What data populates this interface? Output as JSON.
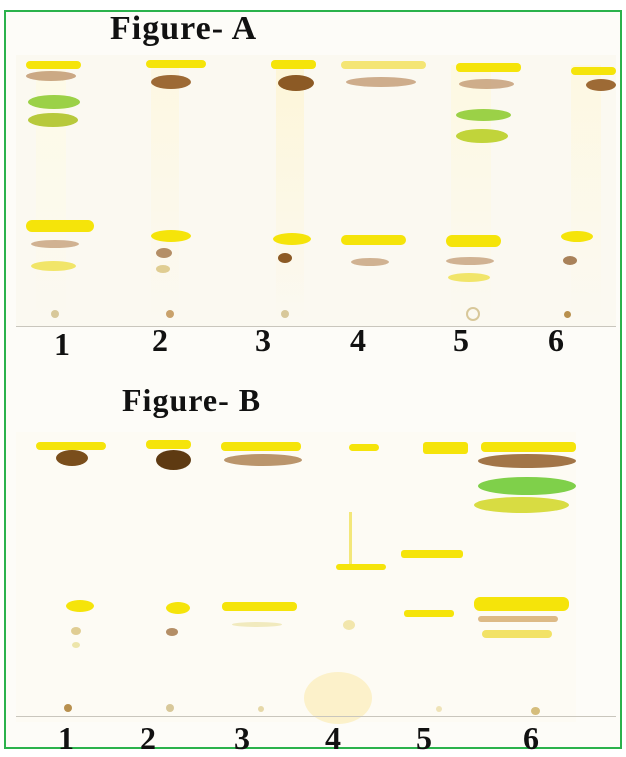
{
  "figure_a": {
    "title": "Figure- A",
    "lane_labels": [
      "1",
      "2",
      "3",
      "4",
      "5",
      "6"
    ]
  },
  "figure_b": {
    "title": "Figure- B",
    "lane_labels": [
      "1",
      "2",
      "3",
      "4",
      "5",
      "6"
    ]
  },
  "colors": {
    "frame_border": "#2bb24c",
    "yellow_band": "#f5e40a",
    "brown_band": "#a0703c",
    "green_band": "#9bd147",
    "plate_background": "#fbf9f1"
  }
}
